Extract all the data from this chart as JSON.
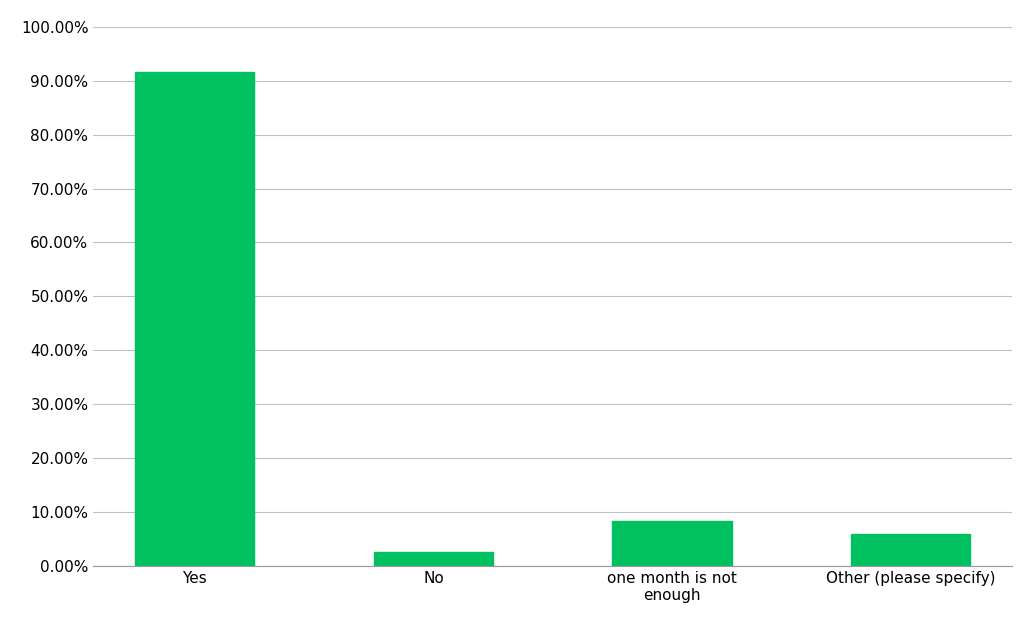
{
  "categories": [
    "Yes",
    "No",
    "one month is not\nenough",
    "Other (please specify)"
  ],
  "values": [
    0.9167,
    0.025,
    0.0833,
    0.0583
  ],
  "bar_color": "#00C060",
  "ylim": [
    0,
    1.0
  ],
  "yticks": [
    0.0,
    0.1,
    0.2,
    0.3,
    0.4,
    0.5,
    0.6,
    0.7,
    0.8,
    0.9,
    1.0
  ],
  "ytick_labels": [
    "0.00%",
    "10.00%",
    "20.00%",
    "30.00%",
    "40.00%",
    "50.00%",
    "60.00%",
    "70.00%",
    "80.00%",
    "90.00%",
    "100.00%"
  ],
  "background_color": "#ffffff",
  "grid_color": "#c0c0c0",
  "bar_width": 0.5,
  "tick_fontsize": 11,
  "xlabel_fontsize": 11
}
